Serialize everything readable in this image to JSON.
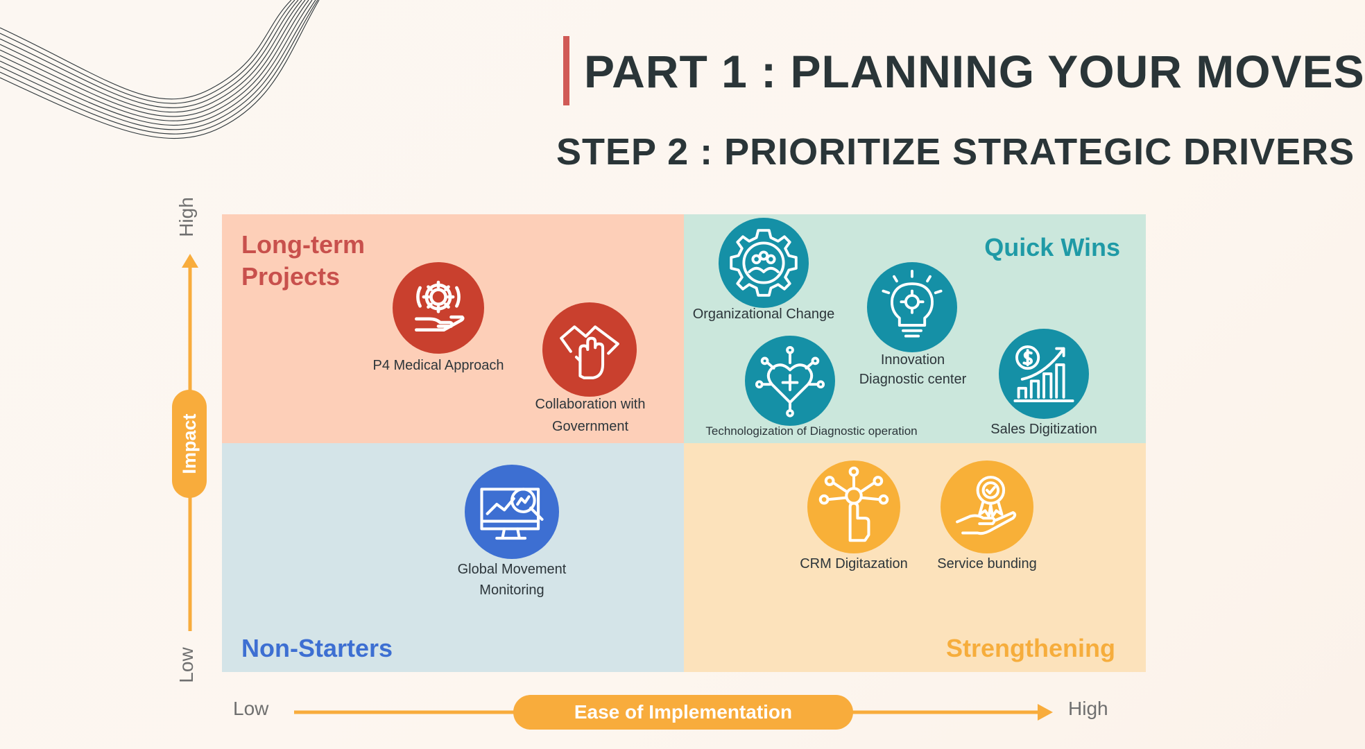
{
  "header": {
    "title": "PART 1 : PLANNING YOUR MOVES",
    "subtitle": "STEP 2 : PRIORITIZE STRATEGIC DRIVERS"
  },
  "axes": {
    "y": {
      "label": "Impact",
      "low": "Low",
      "high": "High"
    },
    "x": {
      "label": "Ease of Implementation",
      "low": "Low",
      "high": "High"
    }
  },
  "quadrants": {
    "long_term": {
      "title": "Long-term Projects",
      "color": "#fdcfb8",
      "title_color": "#c8504c"
    },
    "quick_wins": {
      "title": "Quick Wins",
      "color": "#cbe7dc",
      "title_color": "#1f9aa6"
    },
    "non_starters": {
      "title": "Non-Starters",
      "color": "#d4e4e8",
      "title_color": "#3d6fd2"
    },
    "strengthening": {
      "title": "Strengthening",
      "color": "#fce2bb",
      "title_color": "#f6ad3c"
    }
  },
  "items": {
    "p4": {
      "label": "P4 Medical Approach",
      "icon": "gear-hand-icon",
      "color": "#c9402e"
    },
    "collab": {
      "label_1": "Collaboration with",
      "label_2": "Government",
      "icon": "joined-hands-icon",
      "color": "#c9402e"
    },
    "org": {
      "label": "Organizational Change",
      "icon": "team-gear-icon",
      "color": "#1590a6"
    },
    "innov": {
      "label_1": "Innovation",
      "label_2": "Diagnostic center",
      "icon": "lightbulb-head-icon",
      "color": "#1590a6"
    },
    "tech": {
      "label": "Technologization of Diagnostic operation",
      "icon": "heart-network-icon",
      "color": "#1590a6"
    },
    "sales": {
      "label": "Sales Digitization",
      "icon": "growth-chart-icon",
      "color": "#1590a6"
    },
    "global": {
      "label_1": "Global Movement",
      "label_2": "Monitoring",
      "icon": "monitor-analytics-icon",
      "color": "#3d6fd2"
    },
    "crm": {
      "label": "CRM Digitazation",
      "icon": "touch-network-icon",
      "color": "#f8b038"
    },
    "service": {
      "label": "Service bunding",
      "icon": "award-hand-icon",
      "color": "#f8b038"
    }
  },
  "accent": {
    "arrow": "#f8ac3c",
    "title_bar": "#d05a56"
  }
}
